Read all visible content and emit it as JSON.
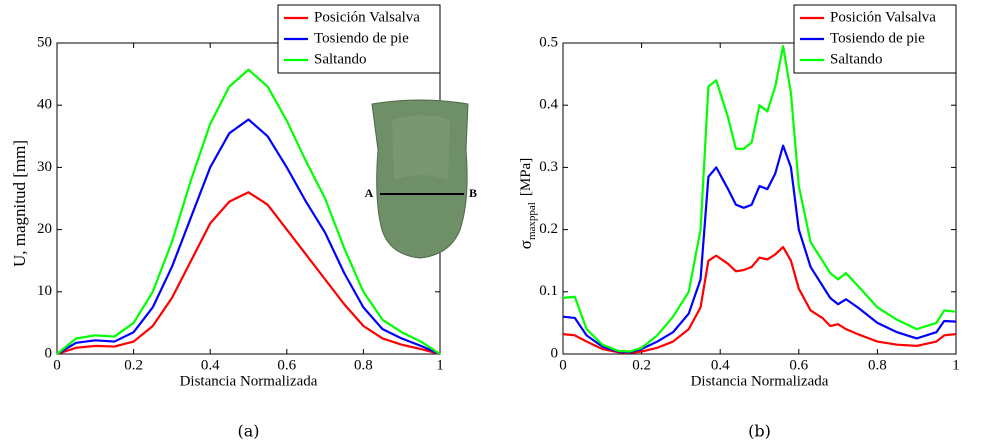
{
  "chart_data": [
    {
      "type": "line",
      "caption": "(a)",
      "xlabel": "Distancia Normalizada",
      "ylabel": "U, magnitud [mm]",
      "annotations": [
        "A",
        "B"
      ],
      "x": [
        0,
        0.05,
        0.1,
        0.15,
        0.2,
        0.25,
        0.3,
        0.35,
        0.4,
        0.45,
        0.5,
        0.55,
        0.6,
        0.65,
        0.7,
        0.75,
        0.8,
        0.85,
        0.9,
        0.95,
        1
      ],
      "series": [
        {
          "name": "Posición Valsalva",
          "color": "#ff0000",
          "values": [
            0,
            1,
            1.3,
            1.2,
            2,
            4.5,
            9,
            15,
            21,
            24.5,
            26,
            24,
            20,
            16,
            12,
            8,
            4.5,
            2.5,
            1.5,
            0.8,
            0
          ]
        },
        {
          "name": "Tosiendo de pie",
          "color": "#0000ff",
          "values": [
            0,
            1.8,
            2.2,
            2,
            3.5,
            7.5,
            14,
            22,
            30,
            35.5,
            37.7,
            35,
            30,
            24.5,
            19.5,
            13,
            7.5,
            4,
            2.5,
            1.3,
            0
          ]
        },
        {
          "name": "Saltando",
          "color": "#00ff00",
          "values": [
            0,
            2.5,
            3,
            2.8,
            5,
            10,
            18,
            28,
            37,
            43,
            45.7,
            43,
            37.5,
            31,
            25,
            17,
            10,
            5.5,
            3.5,
            2,
            0
          ]
        }
      ],
      "xlim": [
        0,
        1
      ],
      "xticks": [
        0,
        0.2,
        0.4,
        0.6,
        0.8,
        1
      ],
      "ylim": [
        0,
        50
      ],
      "yticks": [
        0,
        10,
        20,
        30,
        40,
        50
      ],
      "grid": false,
      "legend": "upper right"
    },
    {
      "type": "line",
      "caption": "(b)",
      "xlabel": "Distancia Normalizada",
      "ylabel": "σ",
      "ylabel_subscript": "maxppal",
      "ylabel_unit": "[MPa]",
      "x": [
        0,
        0.03,
        0.06,
        0.1,
        0.14,
        0.17,
        0.2,
        0.24,
        0.28,
        0.32,
        0.35,
        0.37,
        0.39,
        0.42,
        0.44,
        0.46,
        0.48,
        0.5,
        0.52,
        0.54,
        0.56,
        0.58,
        0.6,
        0.63,
        0.66,
        0.68,
        0.7,
        0.72,
        0.75,
        0.8,
        0.85,
        0.9,
        0.95,
        0.97,
        1
      ],
      "series": [
        {
          "name": "Posición Valsalva",
          "color": "#ff0000",
          "values": [
            0.032,
            0.03,
            0.02,
            0.008,
            0.003,
            0.002,
            0.004,
            0.01,
            0.02,
            0.04,
            0.075,
            0.15,
            0.158,
            0.145,
            0.133,
            0.135,
            0.14,
            0.155,
            0.152,
            0.16,
            0.172,
            0.15,
            0.105,
            0.07,
            0.058,
            0.045,
            0.048,
            0.04,
            0.032,
            0.02,
            0.015,
            0.013,
            0.02,
            0.03,
            0.032
          ]
        },
        {
          "name": "Tosiendo de pie",
          "color": "#0000ff",
          "values": [
            0.06,
            0.058,
            0.03,
            0.012,
            0.004,
            0.003,
            0.008,
            0.02,
            0.035,
            0.065,
            0.12,
            0.285,
            0.3,
            0.265,
            0.24,
            0.235,
            0.24,
            0.27,
            0.265,
            0.29,
            0.335,
            0.3,
            0.2,
            0.14,
            0.11,
            0.09,
            0.08,
            0.088,
            0.075,
            0.05,
            0.035,
            0.025,
            0.035,
            0.053,
            0.052
          ]
        },
        {
          "name": "Saltando",
          "color": "#00ff00",
          "values": [
            0.09,
            0.092,
            0.04,
            0.015,
            0.005,
            0.004,
            0.01,
            0.03,
            0.06,
            0.1,
            0.2,
            0.43,
            0.44,
            0.38,
            0.33,
            0.33,
            0.34,
            0.4,
            0.39,
            0.43,
            0.495,
            0.42,
            0.27,
            0.18,
            0.15,
            0.13,
            0.12,
            0.13,
            0.11,
            0.075,
            0.055,
            0.04,
            0.05,
            0.07,
            0.068
          ]
        }
      ],
      "xlim": [
        0,
        1
      ],
      "xticks": [
        0,
        0.2,
        0.4,
        0.6,
        0.8,
        1
      ],
      "ylim": [
        0,
        0.5
      ],
      "yticks": [
        0,
        0.1,
        0.2,
        0.3,
        0.4,
        0.5
      ],
      "grid": false,
      "legend": "upper right"
    }
  ]
}
